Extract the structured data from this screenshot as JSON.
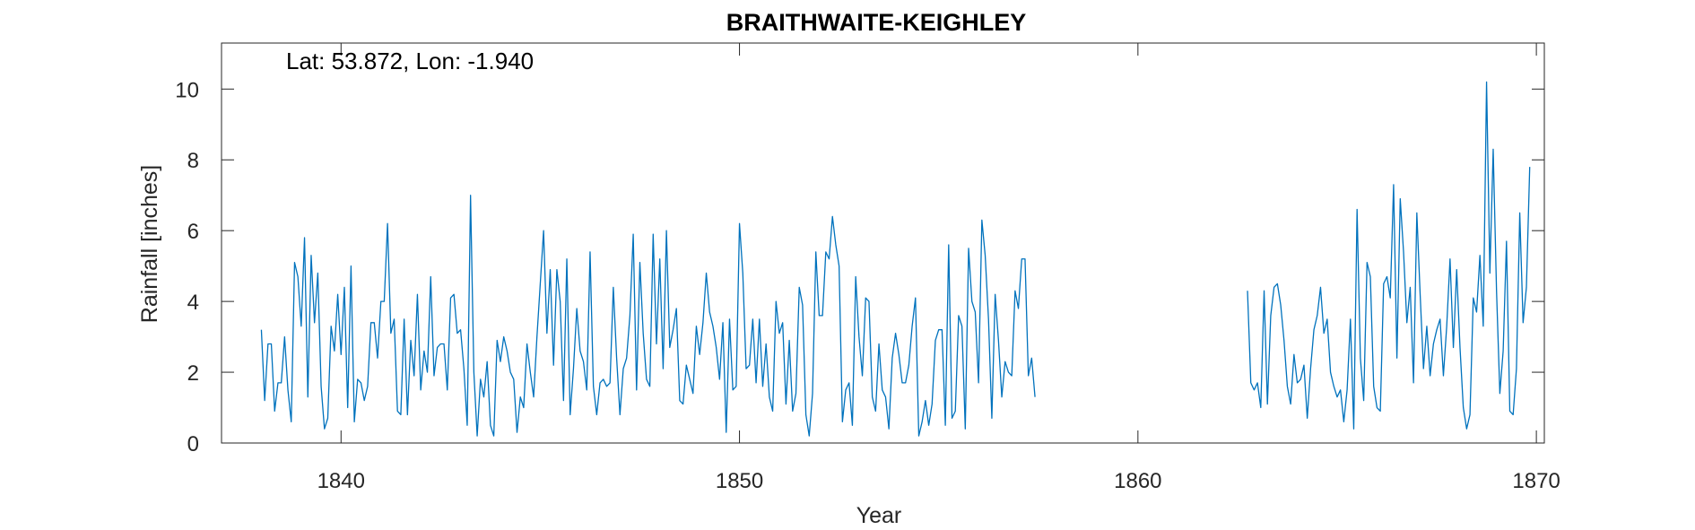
{
  "chart_data": {
    "type": "line",
    "title": "BRAITHWAITE-KEIGHLEY",
    "xlabel": "Year",
    "ylabel": "Rainfall [inches]",
    "annotation": "Lat: 53.872, Lon: -1.940",
    "xlim": [
      1837,
      1870.2
    ],
    "ylim": [
      0,
      11.3
    ],
    "xticks": [
      1840,
      1850,
      1860,
      1870
    ],
    "yticks": [
      0,
      2,
      4,
      6,
      8,
      10
    ],
    "grid": false,
    "line_color": "#0072BD",
    "series": [
      {
        "segments": [
          {
            "start": 1838.0,
            "values": [
              3.2,
              1.2,
              2.8,
              2.8,
              0.9,
              1.7,
              1.7,
              3.0,
              1.5,
              0.6,
              5.1,
              4.7,
              3.3,
              5.8,
              1.3,
              5.3,
              3.4,
              4.8,
              1.6,
              0.4,
              0.7,
              3.3,
              2.6,
              4.2,
              2.5,
              4.4,
              1.0,
              5.0,
              0.6,
              1.8,
              1.7,
              1.2,
              1.6,
              3.4,
              3.4,
              2.4,
              4.0,
              4.0,
              6.2,
              3.1,
              3.5,
              0.9,
              0.8,
              3.5,
              0.8,
              2.9,
              1.9,
              4.2,
              1.5,
              2.6,
              2.0,
              4.7,
              1.9,
              2.7,
              2.8,
              2.8,
              1.5,
              4.1,
              4.2,
              3.1,
              3.2,
              2.1,
              0.5,
              7.0,
              2.0,
              0.2,
              1.8,
              1.3,
              2.3,
              0.5,
              0.2,
              2.9,
              2.3,
              3.0,
              2.6,
              2.0,
              1.8,
              0.3,
              1.3,
              1.0,
              2.8,
              2.0,
              1.3,
              3.0,
              4.5,
              6.0,
              3.1,
              4.9,
              2.2,
              4.9,
              4.0,
              1.2,
              5.2,
              0.8,
              2.1,
              3.8,
              2.6,
              2.3,
              1.5,
              5.4,
              1.6,
              0.8,
              1.7,
              1.8,
              1.6,
              1.7,
              4.4,
              2.4,
              0.8,
              2.1,
              2.4,
              3.6,
              5.9,
              1.5,
              5.1,
              3.1,
              1.8,
              1.6,
              5.9,
              2.8,
              5.2,
              2.1,
              6.0,
              2.7,
              3.2,
              3.8,
              1.2,
              1.1,
              2.2,
              1.8,
              1.4,
              3.3,
              2.5,
              3.4,
              4.8,
              3.7,
              3.3,
              2.7,
              1.8,
              3.4,
              0.3,
              3.5,
              1.5,
              1.6,
              6.2,
              4.8,
              2.1,
              2.2,
              3.5,
              1.7,
              3.5,
              1.6,
              2.8,
              1.3,
              0.9,
              4.0,
              3.1,
              3.4,
              1.1,
              2.9,
              0.9,
              1.4,
              4.4,
              3.9,
              0.8,
              0.2,
              1.4,
              5.4,
              3.6,
              3.6,
              5.4,
              5.2,
              6.4,
              5.6,
              5.0,
              0.6,
              1.5,
              1.7,
              0.5,
              4.7,
              3.0,
              1.9,
              4.1,
              4.0,
              1.3,
              0.9,
              2.8,
              1.5,
              1.3,
              0.4,
              2.4,
              3.1,
              2.5,
              1.7,
              1.7,
              2.2,
              3.3,
              4.1,
              0.2,
              0.6,
              1.2,
              0.5,
              1.1,
              2.9,
              3.2,
              3.2,
              0.5,
              5.6,
              0.7,
              0.9,
              3.6,
              3.3,
              0.4,
              5.5,
              4.0,
              3.7,
              1.7,
              6.3,
              5.3,
              3.5,
              0.7,
              4.2,
              2.9,
              1.3,
              2.3,
              2.0,
              1.9,
              4.3,
              3.8,
              5.2,
              5.2,
              1.9,
              2.4,
              1.3
            ]
          },
          {
            "start": 1862.75,
            "values": [
              4.3,
              1.7,
              1.5,
              1.7,
              1.0,
              4.3,
              1.1,
              3.6,
              4.4,
              4.5,
              3.9,
              2.9,
              1.6,
              1.1,
              2.5,
              1.7,
              1.8,
              2.2,
              0.7,
              2.1,
              3.2,
              3.6,
              4.4,
              3.1,
              3.5,
              2.0,
              1.6,
              1.3,
              1.5,
              0.6,
              1.5,
              3.5,
              0.4,
              6.6,
              2.4,
              1.2,
              5.1,
              4.7,
              1.6,
              1.0,
              0.9,
              4.5,
              4.7,
              4.1,
              7.3,
              2.4,
              6.9,
              5.4,
              3.4,
              4.4,
              1.7,
              6.5,
              4.2,
              2.1,
              3.3,
              1.9,
              2.8,
              3.2,
              3.5,
              1.9,
              3.3,
              5.2,
              2.7,
              4.9,
              2.7,
              1.0,
              0.4,
              0.8,
              4.1,
              3.7,
              5.3,
              3.3,
              10.2,
              4.8,
              8.3,
              4.3,
              1.4,
              2.6,
              5.7,
              0.9,
              0.8,
              2.1,
              6.5,
              3.4,
              4.4,
              7.8
            ]
          }
        ]
      }
    ]
  }
}
